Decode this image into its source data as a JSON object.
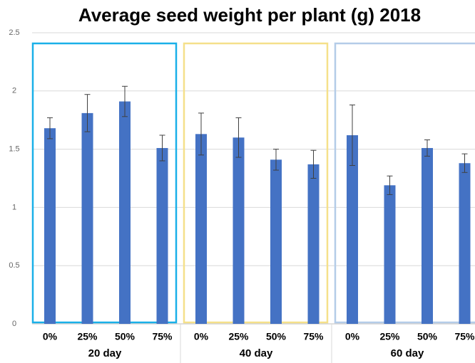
{
  "chart_data": {
    "type": "bar",
    "title": "Average seed weight per plant (g) 2018",
    "categories": [
      "0%",
      "25%",
      "50%",
      "75%",
      "0%",
      "25%",
      "50%",
      "75%",
      "0%",
      "25%",
      "50%",
      "75%"
    ],
    "values": [
      1.68,
      1.81,
      1.91,
      1.51,
      1.63,
      1.6,
      1.41,
      1.37,
      1.62,
      1.19,
      1.51,
      1.38
    ],
    "errors": [
      0.09,
      0.16,
      0.13,
      0.11,
      0.18,
      0.17,
      0.09,
      0.12,
      0.26,
      0.08,
      0.07,
      0.08
    ],
    "color": "#4472c4",
    "groups": [
      {
        "label": "20 day",
        "color": "#1ab0e8"
      },
      {
        "label": "40 day",
        "color": "#f5e08a"
      },
      {
        "label": "60 day",
        "color": "#b4cce8"
      }
    ],
    "ylim": [
      0,
      2.5
    ],
    "yticks": [
      0,
      0.5,
      1,
      1.5,
      2,
      2.5
    ],
    "grid": true
  }
}
